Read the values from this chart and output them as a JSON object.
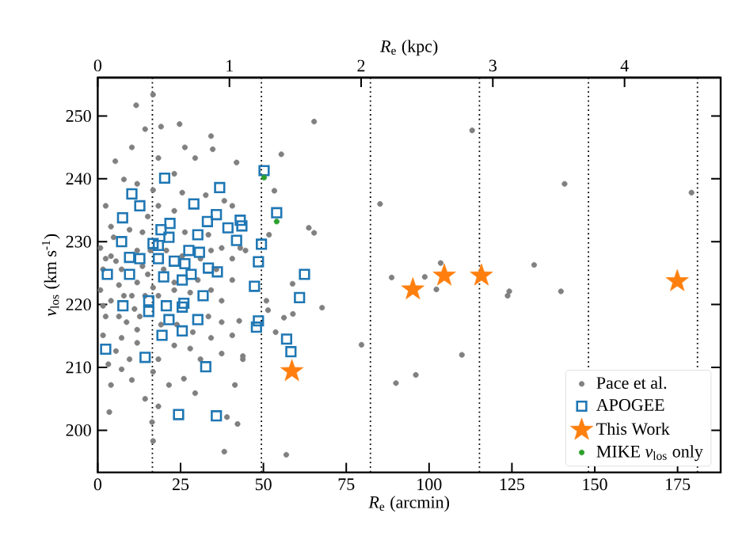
{
  "chart_data": {
    "type": "scatter",
    "xlabel": "*R*$_{e}$ (arcmin)",
    "ylabel": "*v*$_{los}$ (km s$^{-1}$)",
    "x2label": "*R*$_{e}$ (kpc)",
    "xlim": [
      0,
      188
    ],
    "ylim": [
      193.3,
      256.1
    ],
    "x2lim": [
      0,
      4.73
    ],
    "xticks": [
      0,
      25,
      50,
      75,
      100,
      125,
      150,
      175
    ],
    "yticks": [
      200,
      210,
      220,
      230,
      240,
      250
    ],
    "x2ticks": [
      0,
      1,
      2,
      3,
      4
    ],
    "legend": "bottom right",
    "ref_lines": [
      {
        "axis": "x",
        "value": 16.5,
        "color": "#000000",
        "line_style": "dotted"
      },
      {
        "axis": "x",
        "value": 49.4,
        "color": "#000000",
        "line_style": "dotted"
      },
      {
        "axis": "x",
        "value": 82.3,
        "color": "#000000",
        "line_style": "dotted"
      },
      {
        "axis": "x",
        "value": 115.2,
        "color": "#000000",
        "line_style": "dotted"
      },
      {
        "axis": "x",
        "value": 148.1,
        "color": "#000000",
        "line_style": "dotted"
      },
      {
        "axis": "x",
        "value": 181.0,
        "color": "#000000",
        "line_style": "dotted"
      }
    ],
    "series": [
      {
        "name": "Pace et al.",
        "color": "#808080",
        "marker": "circle",
        "x": [
          65.3,
          55.4,
          53.3,
          85.2,
          63.7,
          65.3,
          113.0,
          88.7,
          98.7,
          103.5,
          102.2,
          79.6,
          90.0,
          96.0,
          109.9,
          56.9,
          67.7,
          58.8,
          58.9,
          56.2,
          53.7,
          50.9,
          51.4,
          42.7,
          43.8,
          42.2,
          41.9,
          44.6,
          51.7,
          140.9,
          179.2,
          131.7,
          124.2,
          123.7,
          139.8,
          16.7,
          11.6,
          14.3,
          19.1,
          24.7,
          34.2,
          5.3,
          10.3,
          7.9,
          11.9,
          26.3,
          29.4,
          34.7,
          2.4,
          4.0,
          38.2,
          40.6,
          0.8,
          1.6,
          0.8,
          2.4,
          1.6,
          3.2,
          4.0,
          3.5,
          7.2,
          10.3,
          14.3,
          16.7,
          16.4,
          18.3,
          21.5,
          26.0,
          29.4,
          38.2,
          39.0,
          41.4,
          43.8,
          37.4,
          34.2,
          27.9,
          23.1,
          11.9,
          7.2,
          8.7,
          12.7,
          18.3,
          23.1,
          27.9,
          34.2,
          37.4,
          40.6,
          40.6,
          43.0,
          34.2,
          31.0,
          25.5,
          19.9,
          15.1,
          11.9,
          6.4,
          4.0,
          10.3,
          5.5,
          4.0,
          4.8,
          9.6,
          13.5,
          15.1,
          18.3,
          23.1,
          25.5,
          16.7,
          32.6,
          18.3,
          23.1,
          11.9,
          15.9,
          7.2,
          13.5,
          16.7,
          7.9,
          14.3,
          11.1,
          6.4,
          11.9,
          19.1,
          23.9,
          28.7,
          33.4,
          37.4,
          40.6,
          31.0,
          18.3,
          9.6,
          16.7,
          5.5,
          1.6,
          2.4,
          26.3,
          33.4,
          37.4,
          35.8,
          30.2,
          23.1,
          20.7
        ],
        "values": [
          249.1,
          243.9,
          238.1,
          236.0,
          232.2,
          231.4,
          247.7,
          224.3,
          224.4,
          226.6,
          222.4,
          213.6,
          207.5,
          208.8,
          212.0,
          196.1,
          219.5,
          223.3,
          218.5,
          217.9,
          215.6,
          220.6,
          219.1,
          217.4,
          211.3,
          201.0,
          242.6,
          228.6,
          231.1,
          239.2,
          237.8,
          226.3,
          222.1,
          221.4,
          222.1,
          253.4,
          251.7,
          247.9,
          248.3,
          248.7,
          246.8,
          242.8,
          245.0,
          239.9,
          239.2,
          245.0,
          243.3,
          244.7,
          235.7,
          232.4,
          236.5,
          235.7,
          229.0,
          225.6,
          222.3,
          218.1,
          215.1,
          210.5,
          207.2,
          202.9,
          209.7,
          208.0,
          205.0,
          198.3,
          201.3,
          203.8,
          207.2,
          208.2,
          205.9,
          196.6,
          202.1,
          207.2,
          211.8,
          212.2,
          214.7,
          213.0,
          213.5,
          213.9,
          214.7,
          217.2,
          218.1,
          221.4,
          222.3,
          221.9,
          222.3,
          220.6,
          223.9,
          227.3,
          229.0,
          228.6,
          227.3,
          227.7,
          225.6,
          224.8,
          223.5,
          223.1,
          220.6,
          221.4,
          226.9,
          227.7,
          230.7,
          231.9,
          231.5,
          234.0,
          235.7,
          234.9,
          237.8,
          238.2,
          237.4,
          243.3,
          240.8,
          228.6,
          228.6,
          225.6,
          226.1,
          222.7,
          221.4,
          221.4,
          219.3,
          218.1,
          216.0,
          216.8,
          216.8,
          215.6,
          218.1,
          217.2,
          215.1,
          211.3,
          211.3,
          211.3,
          209.3,
          212.6,
          219.8,
          227.3,
          231.5,
          231.1,
          229.0,
          225.6,
          223.9,
          223.5,
          228.6
        ]
      },
      {
        "name": "APOGEE",
        "color": "#1f77b4",
        "marker": "square",
        "x": [
          20.2,
          10.3,
          12.7,
          7.5,
          29.0,
          36.8,
          35.8,
          33.1,
          21.8,
          39.3,
          43.0,
          43.5,
          41.9,
          7.2,
          30.2,
          19.1,
          16.7,
          21.5,
          27.5,
          30.7,
          9.6,
          12.7,
          18.3,
          23.1,
          26.3,
          33.4,
          36.1,
          2.9,
          9.6,
          19.9,
          25.5,
          28.2,
          15.4,
          15.4,
          7.6,
          20.7,
          26.0,
          25.5,
          31.8,
          30.2,
          21.5,
          19.4,
          25.5,
          2.4,
          14.3,
          32.6,
          24.4,
          35.8,
          18.3,
          50.2,
          54.0,
          49.4,
          48.5,
          47.3,
          48.5,
          47.9,
          62.4,
          60.9,
          57.0,
          58.3
        ],
        "values": [
          240.1,
          237.6,
          235.7,
          233.8,
          236.0,
          238.6,
          234.3,
          233.2,
          232.9,
          232.2,
          233.4,
          232.5,
          230.2,
          230.0,
          231.1,
          231.9,
          229.7,
          230.7,
          228.6,
          228.3,
          227.5,
          227.3,
          227.3,
          226.9,
          226.5,
          225.8,
          225.2,
          224.8,
          224.8,
          224.4,
          223.9,
          224.8,
          220.6,
          218.9,
          219.8,
          219.8,
          220.2,
          219.6,
          221.4,
          217.6,
          217.6,
          215.1,
          215.8,
          212.9,
          211.6,
          210.1,
          202.5,
          202.3,
          229.4,
          241.3,
          234.6,
          229.6,
          226.8,
          222.9,
          217.4,
          216.4,
          224.8,
          221.1,
          214.5,
          212.5
        ]
      },
      {
        "name": "This Work",
        "color": "#ff7f0e",
        "marker": "star",
        "x": [
          58.6,
          95.1,
          104.6,
          115.8,
          174.9
        ],
        "values": [
          209.4,
          222.4,
          224.6,
          224.6,
          223.7
        ]
      },
      {
        "name": "MIKE *v*$_{los}$ only",
        "color": "#2ca02c",
        "marker": "circle",
        "x": [
          50.2,
          54.0
        ],
        "values": [
          240.2,
          233.2
        ]
      }
    ]
  }
}
